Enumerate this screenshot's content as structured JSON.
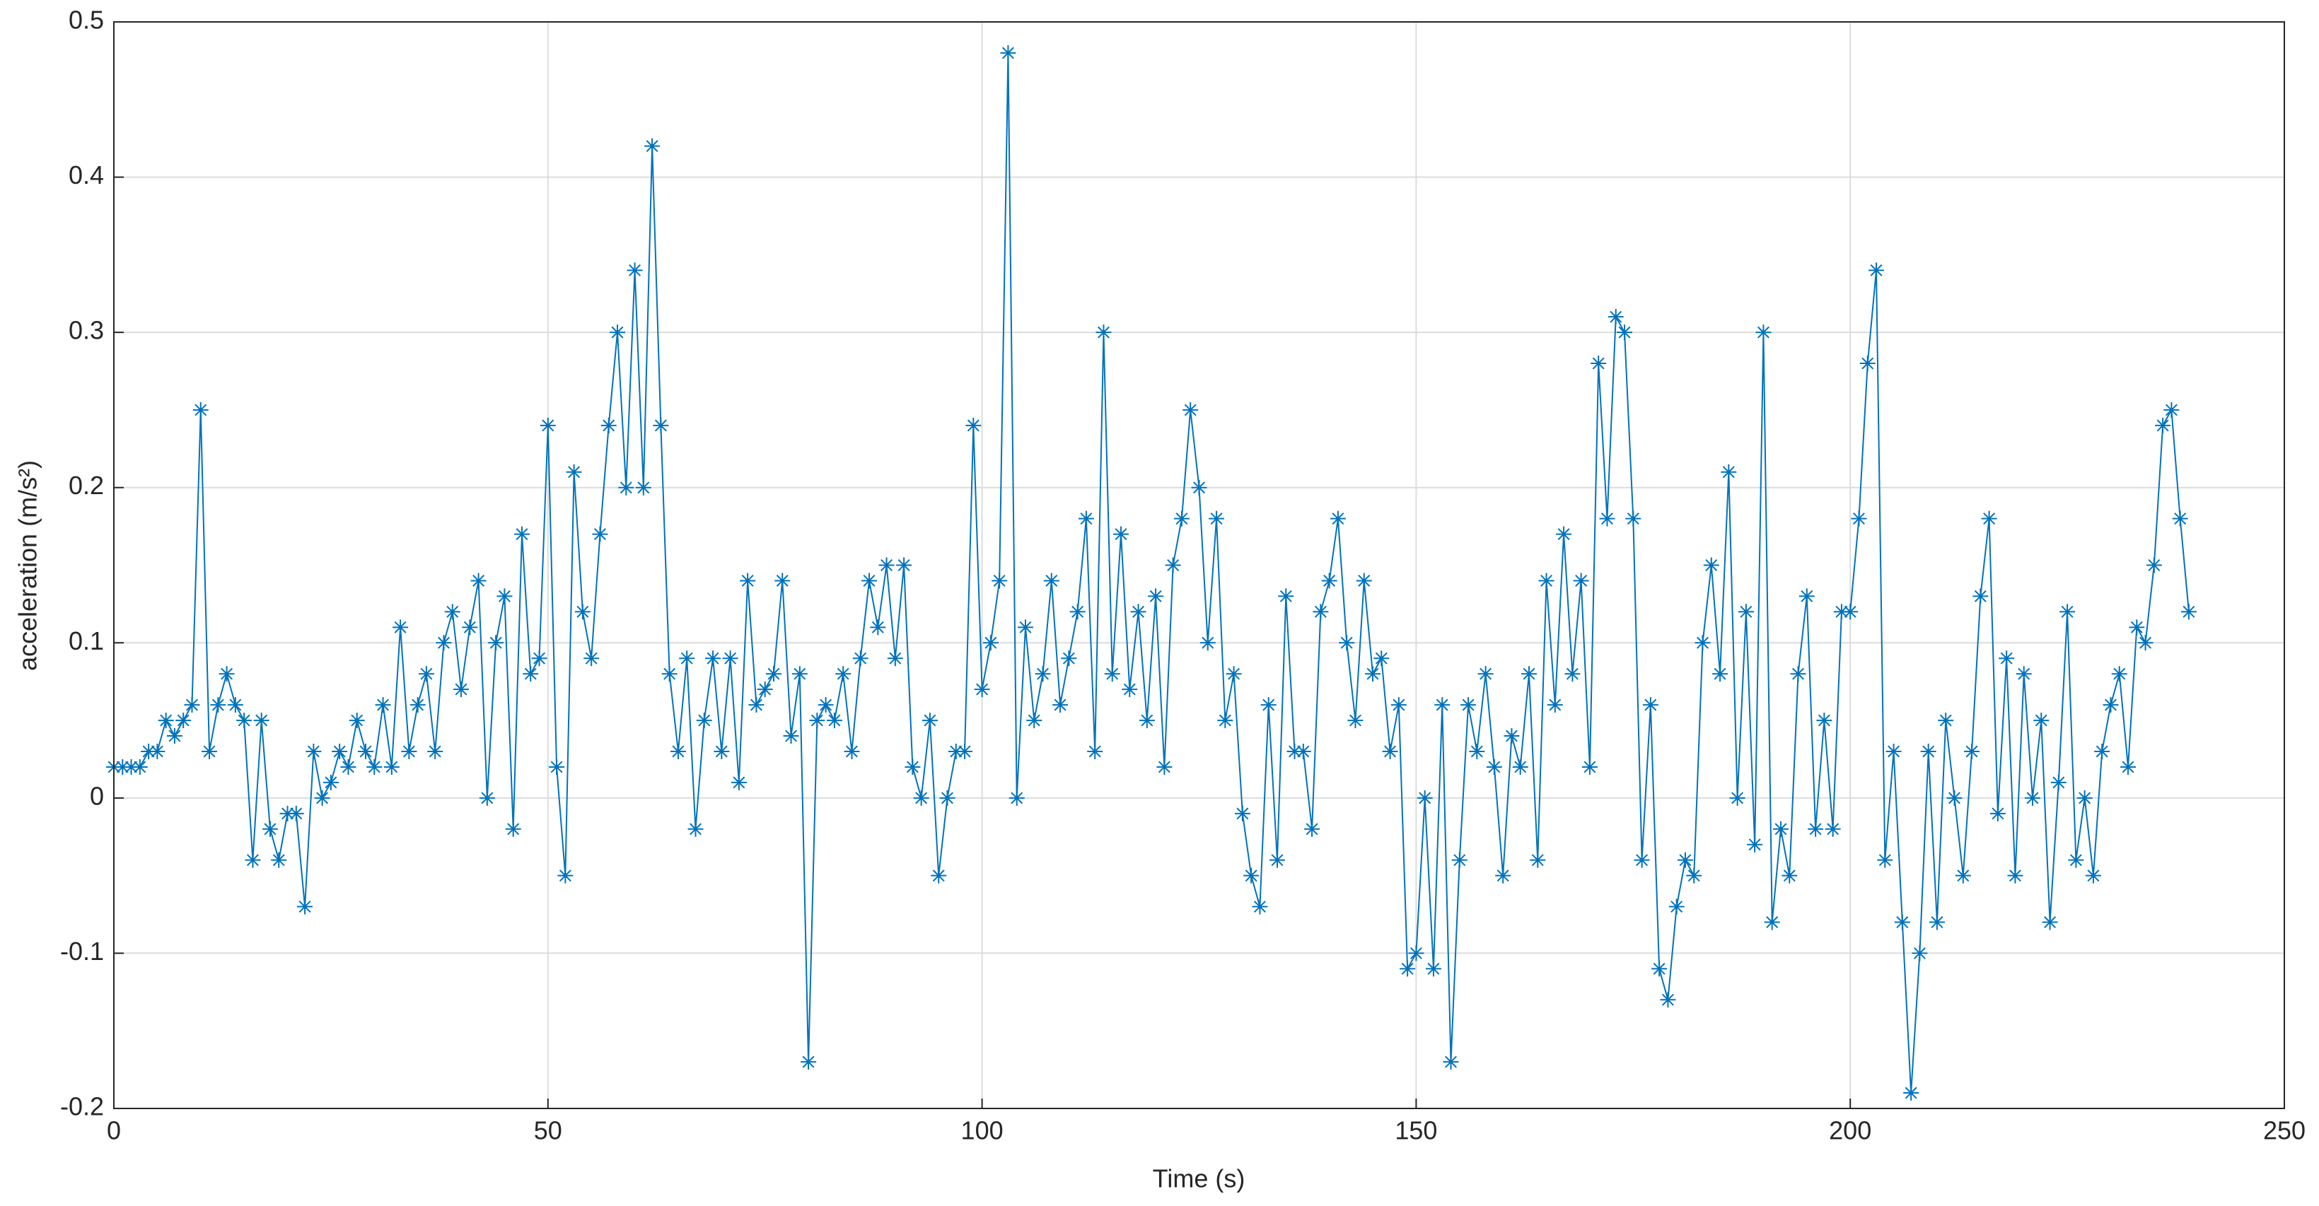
{
  "chart_data": {
    "type": "line",
    "xlabel": "Time (s)",
    "ylabel": "acceleration (m/s²)",
    "xlim": [
      0,
      250
    ],
    "xticks": [
      0,
      50,
      100,
      150,
      200,
      250
    ],
    "ylim": [
      -0.2,
      0.5
    ],
    "yticks": [
      -0.2,
      -0.1,
      0,
      0.1,
      0.2,
      0.3,
      0.4,
      0.5
    ],
    "grid": true,
    "marker": "asterisk",
    "x": [
      0,
      1,
      2,
      3,
      4,
      5,
      6,
      7,
      8,
      9,
      10,
      11,
      12,
      13,
      14,
      15,
      16,
      17,
      18,
      19,
      20,
      21,
      22,
      23,
      24,
      25,
      26,
      27,
      28,
      29,
      30,
      31,
      32,
      33,
      34,
      35,
      36,
      37,
      38,
      39,
      40,
      41,
      42,
      43,
      44,
      45,
      46,
      47,
      48,
      49,
      50,
      51,
      52,
      53,
      54,
      55,
      56,
      57,
      58,
      59,
      60,
      61,
      62,
      63,
      64,
      65,
      66,
      67,
      68,
      69,
      70,
      71,
      72,
      73,
      74,
      75,
      76,
      77,
      78,
      79,
      80,
      81,
      82,
      83,
      84,
      85,
      86,
      87,
      88,
      89,
      90,
      91,
      92,
      93,
      94,
      95,
      96,
      97,
      98,
      99,
      100,
      101,
      102,
      103,
      104,
      105,
      106,
      107,
      108,
      109,
      110,
      111,
      112,
      113,
      114,
      115,
      116,
      117,
      118,
      119,
      120,
      121,
      122,
      123,
      124,
      125,
      126,
      127,
      128,
      129,
      130,
      131,
      132,
      133,
      134,
      135,
      136,
      137,
      138,
      139,
      140,
      141,
      142,
      143,
      144,
      145,
      146,
      147,
      148,
      149,
      150,
      151,
      152,
      153,
      154,
      155,
      156,
      157,
      158,
      159,
      160,
      161,
      162,
      163,
      164,
      165,
      166,
      167,
      168,
      169,
      170,
      171,
      172,
      173,
      174,
      175,
      176,
      177,
      178,
      179,
      180,
      181,
      182,
      183,
      184,
      185,
      186,
      187,
      188,
      189,
      190,
      191,
      192,
      193,
      194,
      195,
      196,
      197,
      198,
      199,
      200,
      201,
      202,
      203,
      204,
      205,
      206,
      207,
      208,
      209,
      210,
      211,
      212,
      213,
      214,
      215,
      216,
      217,
      218,
      219,
      220,
      221,
      222,
      223,
      224,
      225,
      226,
      227,
      228,
      229,
      230,
      231,
      232,
      233,
      234,
      235,
      236,
      237,
      238,
      239
    ],
    "series": [
      {
        "color": "#0072BD",
        "values": [
          0.02,
          0.02,
          0.02,
          0.02,
          0.03,
          0.03,
          0.05,
          0.04,
          0.05,
          0.06,
          0.25,
          0.03,
          0.06,
          0.08,
          0.06,
          0.05,
          -0.04,
          0.05,
          -0.02,
          -0.04,
          -0.01,
          -0.01,
          -0.07,
          0.03,
          0,
          0.01,
          0.03,
          0.02,
          0.05,
          0.03,
          0.02,
          0.06,
          0.02,
          0.11,
          0.03,
          0.06,
          0.08,
          0.03,
          0.1,
          0.12,
          0.07,
          0.11,
          0.14,
          0,
          0.1,
          0.13,
          -0.02,
          0.17,
          0.08,
          0.09,
          0.24,
          0.02,
          -0.05,
          0.21,
          0.12,
          0.09,
          0.17,
          0.24,
          0.3,
          0.2,
          0.34,
          0.2,
          0.42,
          0.24,
          0.08,
          0.03,
          0.09,
          -0.02,
          0.05,
          0.09,
          0.03,
          0.09,
          0.01,
          0.14,
          0.06,
          0.07,
          0.08,
          0.14,
          0.04,
          0.08,
          -0.17,
          0.05,
          0.06,
          0.05,
          0.08,
          0.03,
          0.09,
          0.14,
          0.11,
          0.15,
          0.09,
          0.15,
          0.02,
          0,
          0.05,
          -0.05,
          0,
          0.03,
          0.03,
          0.24,
          0.07,
          0.1,
          0.14,
          0.48,
          0,
          0.11,
          0.05,
          0.08,
          0.14,
          0.06,
          0.09,
          0.12,
          0.18,
          0.03,
          0.3,
          0.08,
          0.17,
          0.07,
          0.12,
          0.05,
          0.13,
          0.02,
          0.15,
          0.18,
          0.25,
          0.2,
          0.1,
          0.18,
          0.05,
          0.08,
          -0.01,
          -0.05,
          -0.07,
          0.06,
          -0.04,
          0.13,
          0.03,
          0.03,
          -0.02,
          0.12,
          0.14,
          0.18,
          0.1,
          0.05,
          0.14,
          0.08,
          0.09,
          0.03,
          0.06,
          -0.11,
          -0.1,
          0,
          -0.11,
          0.06,
          -0.17,
          -0.04,
          0.06,
          0.03,
          0.08,
          0.02,
          -0.05,
          0.04,
          0.02,
          0.08,
          -0.04,
          0.14,
          0.06,
          0.17,
          0.08,
          0.14,
          0.02,
          0.28,
          0.18,
          0.31,
          0.3,
          0.18,
          -0.04,
          0.06,
          -0.11,
          -0.13,
          -0.07,
          -0.04,
          -0.05,
          0.1,
          0.15,
          0.08,
          0.21,
          0,
          0.12,
          -0.03,
          0.3,
          -0.08,
          -0.02,
          -0.05,
          0.08,
          0.13,
          -0.02,
          0.05,
          -0.02,
          0.12,
          0.12,
          0.18,
          0.28,
          0.34,
          -0.04,
          0.03,
          -0.08,
          -0.19,
          -0.1,
          0.03,
          -0.08,
          0.05,
          0,
          -0.05,
          0.03,
          0.13,
          0.18,
          -0.01,
          0.09,
          -0.05,
          0.08,
          0,
          0.05,
          -0.08,
          0.01,
          0.12,
          -0.04,
          0,
          -0.05,
          0.03,
          0.06,
          0.08,
          0.02,
          0.11,
          0.1,
          0.15,
          0.24,
          0.25,
          0.18,
          0.12
        ]
      }
    ]
  }
}
